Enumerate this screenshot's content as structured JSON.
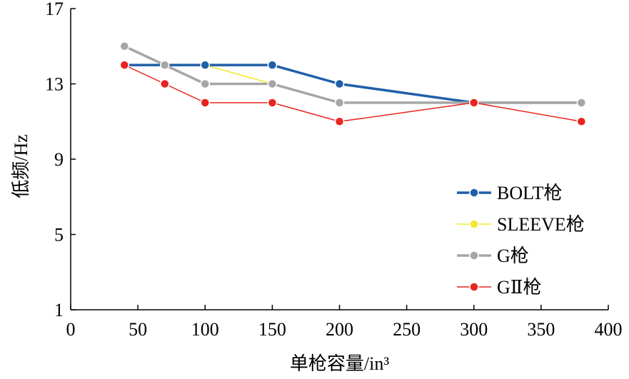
{
  "chart_data": {
    "type": "line",
    "xlabel": "单枪容量/in³",
    "ylabel": "低频/Hz",
    "xlim": [
      0,
      400
    ],
    "ylim": [
      1,
      17
    ],
    "x_ticks": [
      "0",
      "50",
      "100",
      "150",
      "200",
      "250",
      "300",
      "350",
      "400"
    ],
    "y_ticks": [
      "1",
      "5",
      "9",
      "13",
      "17"
    ],
    "grid": false,
    "legend_position": "bottom-right",
    "series": [
      {
        "name": "SLEEVE枪",
        "color": "#f2e830",
        "points": [
          [
            40,
            14
          ],
          [
            100,
            14
          ],
          [
            150,
            13
          ]
        ]
      },
      {
        "name": "BOLT枪",
        "color": "#1f5fa8",
        "points": [
          [
            40,
            14
          ],
          [
            100,
            14
          ],
          [
            150,
            14
          ],
          [
            200,
            13
          ],
          [
            300,
            12
          ],
          [
            380,
            12
          ]
        ]
      },
      {
        "name": "G枪",
        "color": "#a6a6a6",
        "points": [
          [
            40,
            15
          ],
          [
            70,
            14
          ],
          [
            100,
            13
          ],
          [
            150,
            13
          ],
          [
            200,
            12
          ],
          [
            300,
            12
          ],
          [
            380,
            12
          ]
        ]
      },
      {
        "name": "GⅡ枪",
        "color": "#e8251f",
        "points": [
          [
            40,
            14
          ],
          [
            70,
            13
          ],
          [
            100,
            12
          ],
          [
            150,
            12
          ],
          [
            200,
            11
          ],
          [
            300,
            12
          ],
          [
            380,
            11
          ]
        ]
      }
    ],
    "legend_order": [
      1,
      0,
      2,
      3
    ]
  }
}
